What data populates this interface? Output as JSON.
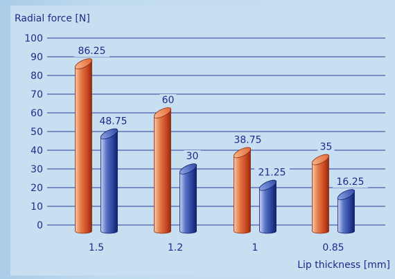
{
  "chart_data": {
    "type": "bar",
    "ylabel": "Radial force [N]",
    "xlabel": "Lip thickness  [mm]",
    "categories": [
      "1.5",
      "1.2",
      "1",
      "0.85"
    ],
    "ylim": [
      0,
      100
    ],
    "yticks": [
      0,
      10,
      20,
      30,
      40,
      50,
      60,
      70,
      80,
      90,
      100
    ],
    "grid": true,
    "series": [
      {
        "values": [
          86.25,
          60,
          38.75,
          35
        ],
        "labels": [
          "86.25",
          "60",
          "38.75",
          "35"
        ],
        "color": "#d9542c"
      },
      {
        "values": [
          48.75,
          30,
          21.25,
          16.25
        ],
        "labels": [
          "48.75",
          "30",
          "21.25",
          "16.25"
        ],
        "color": "#243f9c"
      }
    ]
  }
}
